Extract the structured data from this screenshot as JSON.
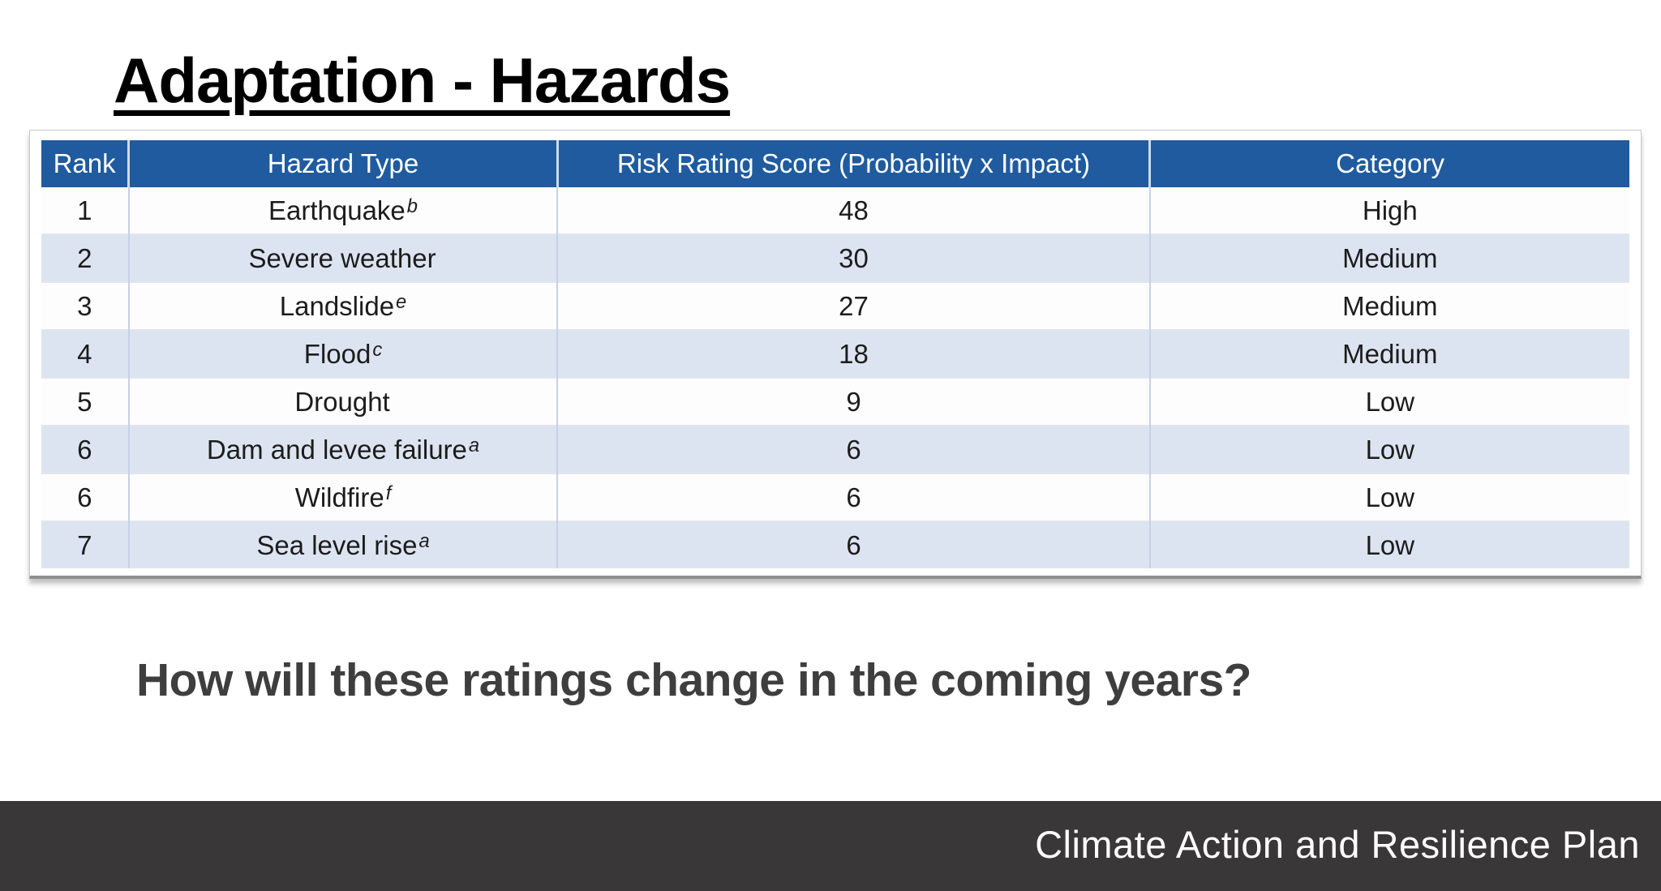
{
  "slide": {
    "title": "Adaptation - Hazards",
    "question": "How will these ratings change in the coming years?",
    "footer": "Climate Action and Resilience Plan"
  },
  "table": {
    "headers": [
      "Rank",
      "Hazard Type",
      "Risk Rating Score (Probability x Impact)",
      "Category"
    ],
    "rows": [
      {
        "rank": "1",
        "hazard": "Earthquake",
        "footnote": "b",
        "score": "48",
        "category": "High"
      },
      {
        "rank": "2",
        "hazard": "Severe weather",
        "footnote": "",
        "score": "30",
        "category": "Medium"
      },
      {
        "rank": "3",
        "hazard": "Landslide",
        "footnote": "e",
        "score": "27",
        "category": "Medium"
      },
      {
        "rank": "4",
        "hazard": "Flood",
        "footnote": "c",
        "score": "18",
        "category": "Medium"
      },
      {
        "rank": "5",
        "hazard": "Drought",
        "footnote": "",
        "score": "9",
        "category": "Low"
      },
      {
        "rank": "6",
        "hazard": "Dam and levee failure",
        "footnote": "a",
        "score": "6",
        "category": "Low"
      },
      {
        "rank": "6",
        "hazard": "Wildfire",
        "footnote": "f",
        "score": "6",
        "category": "Low"
      },
      {
        "rank": "7",
        "hazard": "Sea level rise",
        "footnote": "a",
        "score": "6",
        "category": "Low"
      }
    ]
  },
  "colors": {
    "header_bg": "#1f5b9e",
    "row_alt_bg": "#dde4f1",
    "footer_bg": "#393737",
    "header_text": "#ffffff",
    "body_text": "#1c1c1c"
  }
}
